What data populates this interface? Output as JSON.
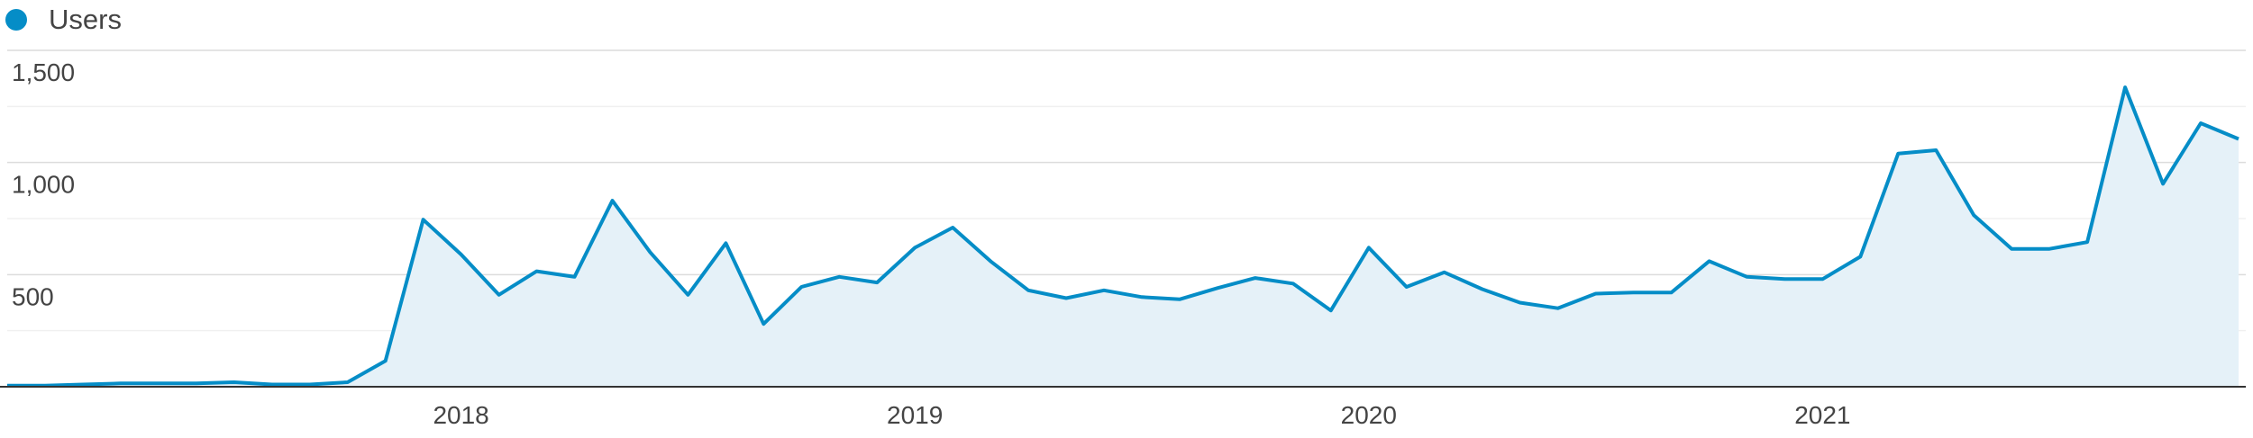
{
  "chart_data": {
    "type": "line",
    "categories": [
      null,
      null,
      null,
      null,
      null,
      null,
      null,
      null,
      null,
      null,
      null,
      null,
      "2018",
      null,
      null,
      null,
      null,
      null,
      null,
      null,
      null,
      null,
      null,
      null,
      "2019",
      null,
      null,
      null,
      null,
      null,
      null,
      null,
      null,
      null,
      null,
      null,
      "2020",
      null,
      null,
      null,
      null,
      null,
      null,
      null,
      null,
      null,
      null,
      null,
      "2021",
      null,
      null,
      null,
      null,
      null,
      null,
      null,
      null,
      null,
      null,
      null
    ],
    "series": [
      {
        "name": "Users",
        "color": "#058dc7",
        "values": [
          5,
          5,
          10,
          15,
          15,
          15,
          20,
          10,
          10,
          20,
          115,
          745,
          590,
          410,
          515,
          490,
          830,
          600,
          410,
          640,
          280,
          445,
          490,
          465,
          620,
          710,
          560,
          430,
          395,
          430,
          400,
          390,
          440,
          485,
          460,
          340,
          620,
          445,
          510,
          435,
          375,
          350,
          415,
          420,
          420,
          560,
          490,
          480,
          480,
          580,
          1040,
          1055,
          765,
          615,
          615,
          645,
          1335,
          905,
          1175,
          1105
        ]
      }
    ],
    "ylim": [
      0,
      1500
    ],
    "yticks": [
      500,
      {
        "value": 1000,
        "label": "1,000"
      },
      {
        "value": 1500,
        "label": "1,500"
      }
    ],
    "minor_yticks": [
      250,
      750,
      1250
    ],
    "grid": true,
    "area_fill": "#e5f1f8"
  }
}
